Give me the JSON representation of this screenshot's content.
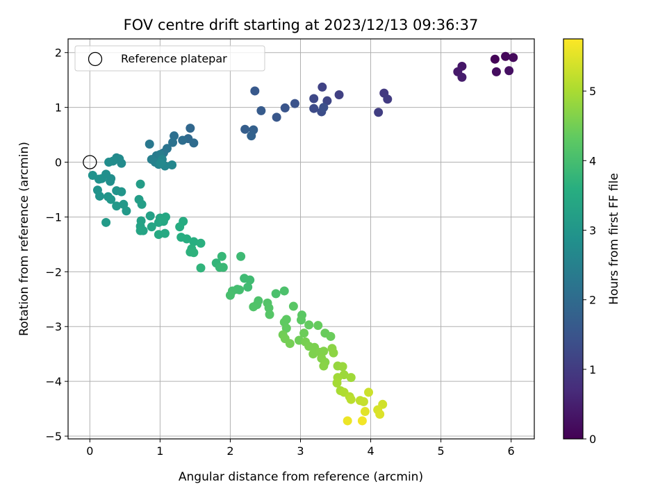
{
  "chart_data": {
    "type": "scatter",
    "title": "FOV centre drift starting at 2023/12/13 09:36:37",
    "xlabel": "Angular distance from reference (arcmin)",
    "ylabel": "Rotation from reference (arcmin)",
    "xlim": [
      -0.31,
      6.33
    ],
    "ylim": [
      -5.05,
      2.25
    ],
    "xticks": [
      0,
      1,
      2,
      3,
      4,
      5,
      6
    ],
    "yticks": [
      -5,
      -4,
      -3,
      -2,
      -1,
      0,
      1,
      2
    ],
    "xtick_labels": [
      "0",
      "1",
      "2",
      "3",
      "4",
      "5",
      "6"
    ],
    "ytick_labels": [
      "−5",
      "−4",
      "−3",
      "−2",
      "−1",
      "0",
      "1",
      "2"
    ],
    "grid": true,
    "legend": {
      "position": "top-left",
      "entries": [
        "Reference platepar"
      ]
    },
    "reference_point": {
      "x": 0,
      "y": 0
    },
    "colorbar": {
      "label": "Hours from first FF file",
      "range": [
        0,
        5.75
      ],
      "ticks": [
        0,
        1,
        2,
        3,
        4,
        5
      ],
      "tick_labels": [
        "0",
        "1",
        "2",
        "3",
        "4",
        "5"
      ],
      "colormap": "viridis"
    },
    "points": [
      {
        "x": 5.77,
        "y": 1.88,
        "h": 0.05
      },
      {
        "x": 5.92,
        "y": 1.93,
        "h": 0.1
      },
      {
        "x": 6.03,
        "y": 1.91,
        "h": 0.15
      },
      {
        "x": 5.79,
        "y": 1.65,
        "h": 0.2
      },
      {
        "x": 5.97,
        "y": 1.67,
        "h": 0.25
      },
      {
        "x": 5.3,
        "y": 1.75,
        "h": 0.35
      },
      {
        "x": 5.24,
        "y": 1.65,
        "h": 0.4
      },
      {
        "x": 5.3,
        "y": 1.55,
        "h": 0.45
      },
      {
        "x": 4.19,
        "y": 1.26,
        "h": 0.95
      },
      {
        "x": 4.24,
        "y": 1.15,
        "h": 1.0
      },
      {
        "x": 4.11,
        "y": 0.91,
        "h": 1.05
      },
      {
        "x": 3.55,
        "y": 1.23,
        "h": 1.1
      },
      {
        "x": 3.31,
        "y": 1.37,
        "h": 1.15
      },
      {
        "x": 3.38,
        "y": 1.12,
        "h": 1.2
      },
      {
        "x": 3.19,
        "y": 1.16,
        "h": 1.25
      },
      {
        "x": 3.19,
        "y": 0.98,
        "h": 1.3
      },
      {
        "x": 3.3,
        "y": 0.92,
        "h": 1.35
      },
      {
        "x": 3.33,
        "y": 1.0,
        "h": 1.4
      },
      {
        "x": 2.92,
        "y": 1.07,
        "h": 1.45
      },
      {
        "x": 2.78,
        "y": 0.99,
        "h": 1.5
      },
      {
        "x": 2.66,
        "y": 0.82,
        "h": 1.55
      },
      {
        "x": 2.35,
        "y": 1.3,
        "h": 1.6
      },
      {
        "x": 2.44,
        "y": 0.94,
        "h": 1.65
      },
      {
        "x": 2.21,
        "y": 0.6,
        "h": 1.7
      },
      {
        "x": 2.33,
        "y": 0.59,
        "h": 1.75
      },
      {
        "x": 2.3,
        "y": 0.48,
        "h": 1.8
      },
      {
        "x": 1.43,
        "y": 0.62,
        "h": 1.9
      },
      {
        "x": 1.4,
        "y": 0.43,
        "h": 1.95
      },
      {
        "x": 1.48,
        "y": 0.35,
        "h": 2.0
      },
      {
        "x": 1.32,
        "y": 0.4,
        "h": 2.05
      },
      {
        "x": 1.2,
        "y": 0.48,
        "h": 2.1
      },
      {
        "x": 1.18,
        "y": 0.36,
        "h": 2.15
      },
      {
        "x": 1.1,
        "y": 0.25,
        "h": 2.2
      },
      {
        "x": 1.05,
        "y": 0.17,
        "h": 2.25
      },
      {
        "x": 0.85,
        "y": 0.33,
        "h": 2.3
      },
      {
        "x": 0.95,
        "y": 0.12,
        "h": 2.35
      },
      {
        "x": 1.0,
        "y": 0.14,
        "h": 2.4
      },
      {
        "x": 0.88,
        "y": 0.05,
        "h": 2.45
      },
      {
        "x": 0.93,
        "y": 0.0,
        "h": 2.5
      },
      {
        "x": 0.98,
        "y": -0.04,
        "h": 2.55
      },
      {
        "x": 1.03,
        "y": 0.05,
        "h": 2.6
      },
      {
        "x": 1.07,
        "y": -0.07,
        "h": 2.62
      },
      {
        "x": 1.17,
        "y": -0.05,
        "h": 2.65
      },
      {
        "x": 1.01,
        "y": -0.02,
        "h": 2.68
      },
      {
        "x": 0.38,
        "y": 0.08,
        "h": 2.7
      },
      {
        "x": 0.42,
        "y": 0.06,
        "h": 2.72
      },
      {
        "x": 0.45,
        "y": -0.02,
        "h": 2.74
      },
      {
        "x": 0.33,
        "y": 0.02,
        "h": 2.76
      },
      {
        "x": 0.27,
        "y": 0.0,
        "h": 2.78
      },
      {
        "x": 0.3,
        "y": -0.3,
        "h": 2.8
      },
      {
        "x": 0.29,
        "y": -0.35,
        "h": 2.82
      },
      {
        "x": 0.23,
        "y": -0.22,
        "h": 2.84
      },
      {
        "x": 0.17,
        "y": -0.3,
        "h": 2.86
      },
      {
        "x": 0.13,
        "y": -0.31,
        "h": 2.88
      },
      {
        "x": 0.04,
        "y": -0.24,
        "h": 2.9
      },
      {
        "x": 0.11,
        "y": -0.51,
        "h": 2.92
      },
      {
        "x": 0.14,
        "y": -0.62,
        "h": 2.94
      },
      {
        "x": 0.38,
        "y": -0.52,
        "h": 2.96
      },
      {
        "x": 0.45,
        "y": -0.54,
        "h": 2.98
      },
      {
        "x": 0.26,
        "y": -0.63,
        "h": 3.0
      },
      {
        "x": 0.3,
        "y": -0.68,
        "h": 3.02
      },
      {
        "x": 0.38,
        "y": -0.8,
        "h": 3.04
      },
      {
        "x": 0.48,
        "y": -0.77,
        "h": 3.06
      },
      {
        "x": 0.52,
        "y": -0.89,
        "h": 3.08
      },
      {
        "x": 0.23,
        "y": -1.1,
        "h": 3.1
      },
      {
        "x": 0.72,
        "y": -0.4,
        "h": 3.15
      },
      {
        "x": 0.7,
        "y": -0.68,
        "h": 3.18
      },
      {
        "x": 0.74,
        "y": -0.77,
        "h": 3.2
      },
      {
        "x": 0.86,
        "y": -0.98,
        "h": 3.25
      },
      {
        "x": 0.73,
        "y": -1.07,
        "h": 3.28
      },
      {
        "x": 0.72,
        "y": -1.17,
        "h": 3.3
      },
      {
        "x": 0.76,
        "y": -1.25,
        "h": 3.32
      },
      {
        "x": 0.72,
        "y": -1.25,
        "h": 3.34
      },
      {
        "x": 0.88,
        "y": -1.18,
        "h": 3.36
      },
      {
        "x": 0.98,
        "y": -1.1,
        "h": 3.38
      },
      {
        "x": 1.0,
        "y": -1.02,
        "h": 3.4
      },
      {
        "x": 1.08,
        "y": -1.0,
        "h": 3.42
      },
      {
        "x": 1.05,
        "y": -1.08,
        "h": 3.44
      },
      {
        "x": 0.98,
        "y": -1.32,
        "h": 3.46
      },
      {
        "x": 1.07,
        "y": -1.3,
        "h": 3.48
      },
      {
        "x": 1.33,
        "y": -1.08,
        "h": 3.52
      },
      {
        "x": 1.28,
        "y": -1.18,
        "h": 3.54
      },
      {
        "x": 1.3,
        "y": -1.37,
        "h": 3.56
      },
      {
        "x": 1.38,
        "y": -1.4,
        "h": 3.58
      },
      {
        "x": 1.48,
        "y": -1.45,
        "h": 3.6
      },
      {
        "x": 1.58,
        "y": -1.48,
        "h": 3.62
      },
      {
        "x": 1.45,
        "y": -1.58,
        "h": 3.64
      },
      {
        "x": 1.43,
        "y": -1.64,
        "h": 3.66
      },
      {
        "x": 1.48,
        "y": -1.65,
        "h": 3.68
      },
      {
        "x": 1.58,
        "y": -1.93,
        "h": 3.72
      },
      {
        "x": 1.8,
        "y": -1.84,
        "h": 3.76
      },
      {
        "x": 1.88,
        "y": -1.72,
        "h": 3.8
      },
      {
        "x": 1.85,
        "y": -1.92,
        "h": 3.82
      },
      {
        "x": 1.9,
        "y": -1.92,
        "h": 3.84
      },
      {
        "x": 2.15,
        "y": -1.72,
        "h": 3.88
      },
      {
        "x": 2.2,
        "y": -2.12,
        "h": 3.9
      },
      {
        "x": 2.28,
        "y": -2.15,
        "h": 3.92
      },
      {
        "x": 2.25,
        "y": -2.28,
        "h": 3.94
      },
      {
        "x": 2.1,
        "y": -2.32,
        "h": 3.96
      },
      {
        "x": 2.13,
        "y": -2.33,
        "h": 3.98
      },
      {
        "x": 2.03,
        "y": -2.35,
        "h": 4.0
      },
      {
        "x": 2.0,
        "y": -2.43,
        "h": 4.02
      },
      {
        "x": 2.65,
        "y": -2.4,
        "h": 4.06
      },
      {
        "x": 2.77,
        "y": -2.35,
        "h": 4.08
      },
      {
        "x": 2.4,
        "y": -2.53,
        "h": 4.1
      },
      {
        "x": 2.38,
        "y": -2.6,
        "h": 4.12
      },
      {
        "x": 2.33,
        "y": -2.64,
        "h": 4.14
      },
      {
        "x": 2.53,
        "y": -2.57,
        "h": 4.16
      },
      {
        "x": 2.55,
        "y": -2.66,
        "h": 4.18
      },
      {
        "x": 2.56,
        "y": -2.78,
        "h": 4.2
      },
      {
        "x": 2.9,
        "y": -2.63,
        "h": 4.24
      },
      {
        "x": 3.02,
        "y": -2.79,
        "h": 4.26
      },
      {
        "x": 3.01,
        "y": -2.88,
        "h": 4.28
      },
      {
        "x": 2.8,
        "y": -2.87,
        "h": 4.3
      },
      {
        "x": 2.77,
        "y": -2.92,
        "h": 4.32
      },
      {
        "x": 2.8,
        "y": -3.03,
        "h": 4.34
      },
      {
        "x": 3.12,
        "y": -2.97,
        "h": 4.36
      },
      {
        "x": 3.25,
        "y": -2.98,
        "h": 4.38
      },
      {
        "x": 3.35,
        "y": -3.12,
        "h": 4.4
      },
      {
        "x": 3.43,
        "y": -3.18,
        "h": 4.42
      },
      {
        "x": 3.05,
        "y": -3.12,
        "h": 4.44
      },
      {
        "x": 2.98,
        "y": -3.25,
        "h": 4.46
      },
      {
        "x": 2.75,
        "y": -3.15,
        "h": 4.48
      },
      {
        "x": 2.78,
        "y": -3.22,
        "h": 4.5
      },
      {
        "x": 2.85,
        "y": -3.31,
        "h": 4.52
      },
      {
        "x": 3.07,
        "y": -3.28,
        "h": 4.54
      },
      {
        "x": 3.12,
        "y": -3.36,
        "h": 4.56
      },
      {
        "x": 3.2,
        "y": -3.38,
        "h": 4.58
      },
      {
        "x": 3.18,
        "y": -3.5,
        "h": 4.6
      },
      {
        "x": 3.28,
        "y": -3.47,
        "h": 4.62
      },
      {
        "x": 3.33,
        "y": -3.45,
        "h": 4.64
      },
      {
        "x": 3.3,
        "y": -3.58,
        "h": 4.66
      },
      {
        "x": 3.35,
        "y": -3.65,
        "h": 4.68
      },
      {
        "x": 3.33,
        "y": -3.72,
        "h": 4.7
      },
      {
        "x": 3.45,
        "y": -3.4,
        "h": 4.72
      },
      {
        "x": 3.47,
        "y": -3.48,
        "h": 4.74
      },
      {
        "x": 3.53,
        "y": -3.72,
        "h": 4.82
      },
      {
        "x": 3.6,
        "y": -3.73,
        "h": 4.85
      },
      {
        "x": 3.62,
        "y": -3.88,
        "h": 4.88
      },
      {
        "x": 3.72,
        "y": -3.93,
        "h": 4.9
      },
      {
        "x": 3.53,
        "y": -3.93,
        "h": 4.92
      },
      {
        "x": 3.52,
        "y": -4.03,
        "h": 4.95
      },
      {
        "x": 3.57,
        "y": -4.17,
        "h": 4.98
      },
      {
        "x": 3.62,
        "y": -4.2,
        "h": 5.05
      },
      {
        "x": 3.7,
        "y": -4.28,
        "h": 5.1
      },
      {
        "x": 3.72,
        "y": -4.33,
        "h": 5.15
      },
      {
        "x": 3.85,
        "y": -4.35,
        "h": 5.2
      },
      {
        "x": 3.9,
        "y": -4.37,
        "h": 5.25
      },
      {
        "x": 3.97,
        "y": -4.2,
        "h": 5.3
      },
      {
        "x": 4.17,
        "y": -4.42,
        "h": 5.35
      },
      {
        "x": 4.1,
        "y": -4.52,
        "h": 5.4
      },
      {
        "x": 4.13,
        "y": -4.6,
        "h": 5.45
      },
      {
        "x": 3.92,
        "y": -4.55,
        "h": 5.5
      },
      {
        "x": 3.67,
        "y": -4.72,
        "h": 5.6
      },
      {
        "x": 3.88,
        "y": -4.72,
        "h": 5.65
      }
    ]
  }
}
